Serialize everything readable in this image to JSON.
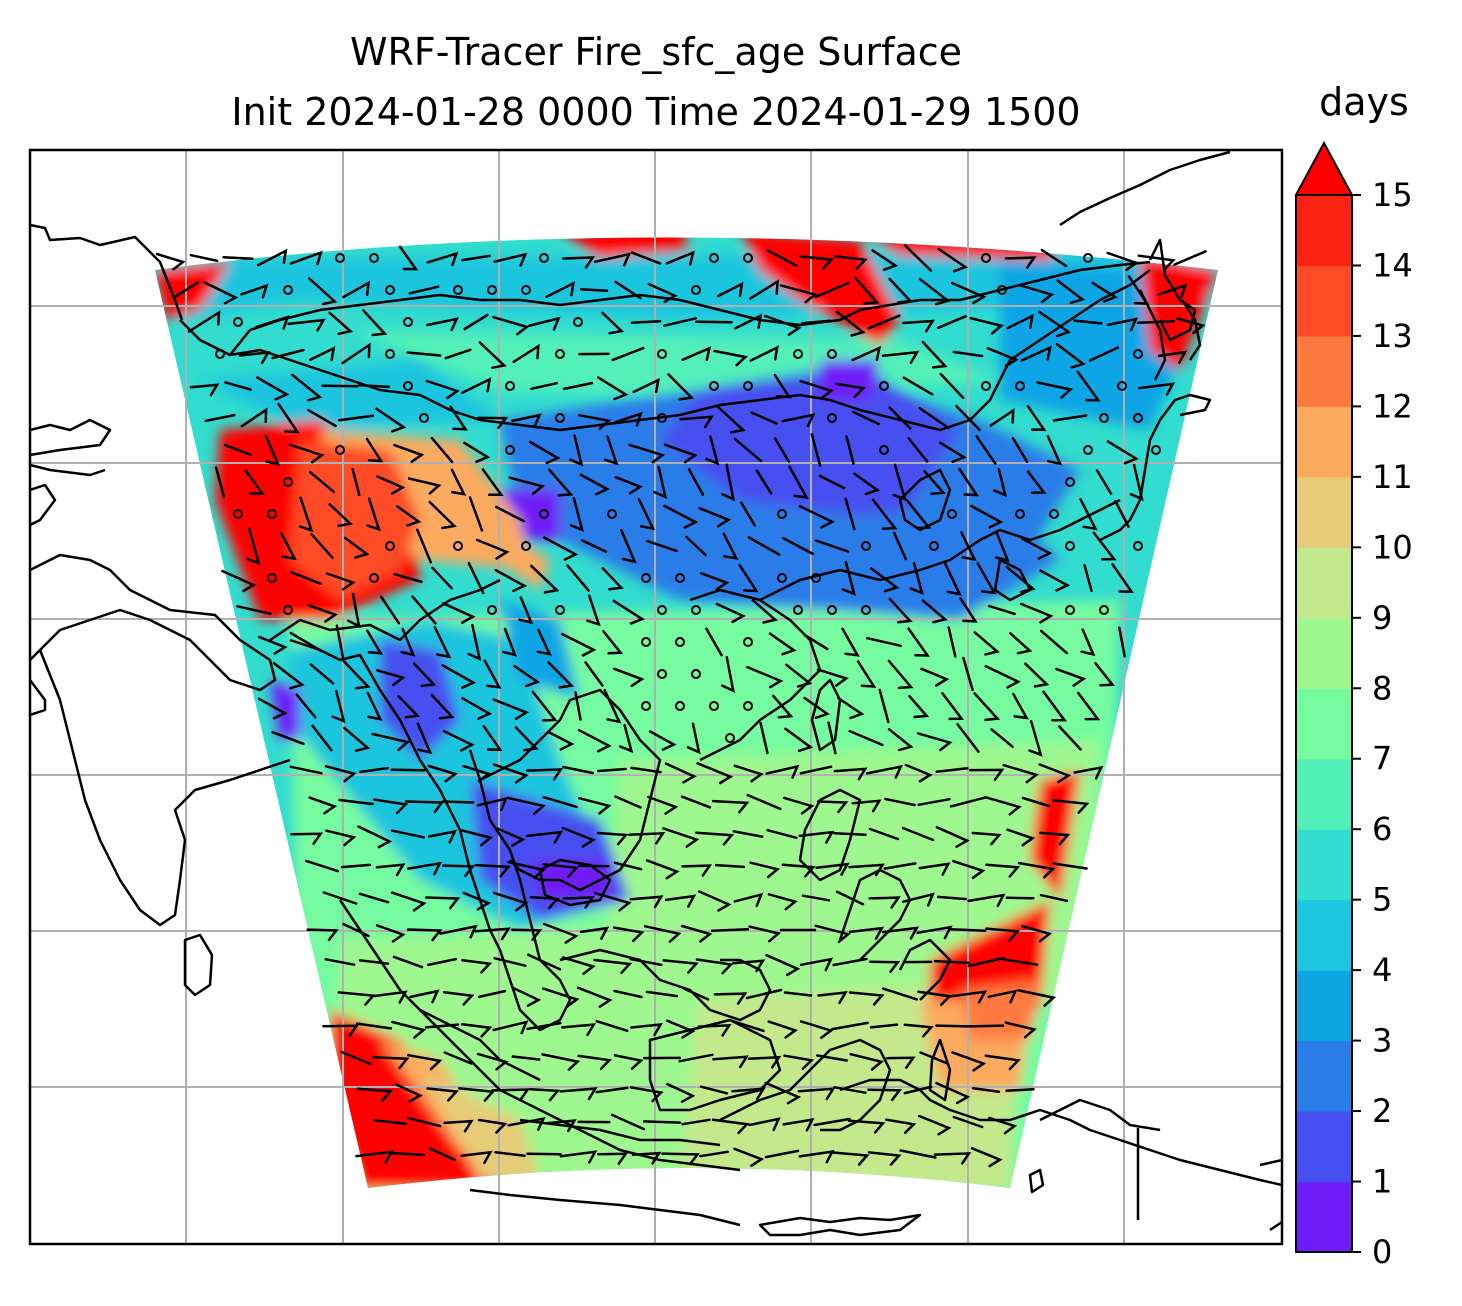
{
  "title_line1": "WRF-Tracer Fire_sfc_age Surface",
  "title_line2": "Init 2024-01-28 0000 Time 2024-01-29 1500",
  "chart_data": {
    "type": "heatmap",
    "title": "WRF-Tracer Fire_sfc_age Surface",
    "subtitle": "Init 2024-01-28 0000 Time 2024-01-29 1500",
    "map": {
      "gridlines": true,
      "coastlines": true,
      "wind_barbs": true
    },
    "colorbar": {
      "label": "days",
      "range": [
        0,
        15
      ],
      "extend": "max",
      "ticks": [
        "0",
        "1",
        "2",
        "3",
        "4",
        "5",
        "6",
        "7",
        "8",
        "9",
        "10",
        "11",
        "12",
        "13",
        "14",
        "15"
      ],
      "colors": [
        "#6f1df8",
        "#464ff0",
        "#2a7de8",
        "#0fa5e5",
        "#1ec5de",
        "#32dcce",
        "#52f0b9",
        "#76fba0",
        "#9ef88f",
        "#c4e88c",
        "#e6cb78",
        "#fbaa5e",
        "#ff7a41",
        "#ff4c27",
        "#fd2414",
        "#ff0000"
      ]
    }
  }
}
